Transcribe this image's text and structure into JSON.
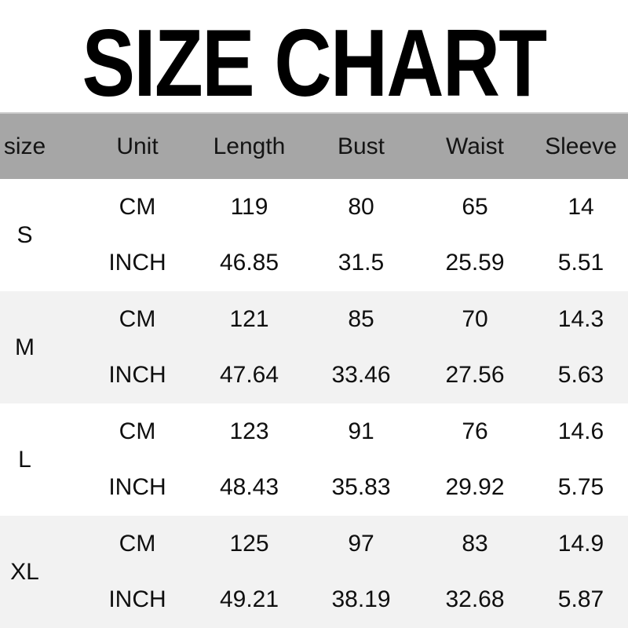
{
  "title": "SIZE CHART",
  "colors": {
    "header_bg": "#a6a6a6",
    "header_top_line": "#c9c9c9",
    "alt_row_bg": "#f2f2f2",
    "row_bg": "#ffffff",
    "text": "#0f0f0f",
    "title_text": "#000000"
  },
  "chart_data": {
    "type": "table",
    "title": "SIZE CHART",
    "columns": [
      "size",
      "Unit",
      "Length",
      "Bust",
      "Waist",
      "Sleeve"
    ],
    "units": [
      "CM",
      "INCH"
    ],
    "rows": [
      {
        "size": "S",
        "cm": [
          "119",
          "80",
          "65",
          "14"
        ],
        "inch": [
          "46.85",
          "31.5",
          "25.59",
          "5.51"
        ]
      },
      {
        "size": "M",
        "cm": [
          "121",
          "85",
          "70",
          "14.3"
        ],
        "inch": [
          "47.64",
          "33.46",
          "27.56",
          "5.63"
        ]
      },
      {
        "size": "L",
        "cm": [
          "123",
          "91",
          "76",
          "14.6"
        ],
        "inch": [
          "48.43",
          "35.83",
          "29.92",
          "5.75"
        ]
      },
      {
        "size": "XL",
        "cm": [
          "125",
          "97",
          "83",
          "14.9"
        ],
        "inch": [
          "49.21",
          "38.19",
          "32.68",
          "5.87"
        ]
      }
    ],
    "layout": {
      "header_row_shaded": true,
      "zebra_striping": "S white, M light-gray, L white, XL light-gray"
    }
  }
}
